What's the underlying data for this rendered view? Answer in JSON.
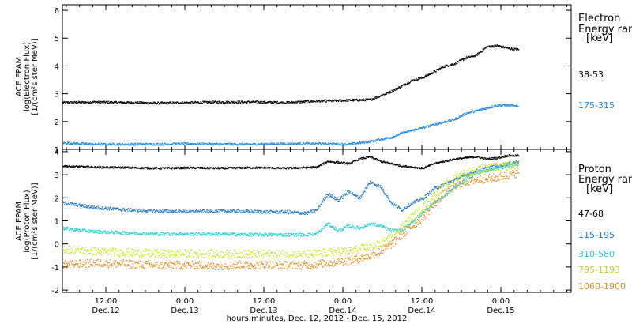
{
  "chart_data": [
    {
      "type": "scatter",
      "ylabel": [
        "ACE EPAM",
        "log(Electron Flux)",
        "[1/(cm²s ster MeV)]"
      ],
      "ylim": [
        1,
        6.2
      ],
      "yticks": [
        1,
        2,
        3,
        4,
        5,
        6
      ],
      "legend_title": [
        "Electron",
        "Energy ran"
      ],
      "legend_unit": "[keV]",
      "series": [
        {
          "name": "38-53",
          "color": "#000000",
          "x": [
            0,
            6,
            12,
            18,
            24,
            30,
            36,
            42,
            48,
            54,
            58,
            62,
            64,
            66,
            68,
            70,
            72,
            74,
            76,
            78,
            80,
            82,
            84,
            86
          ],
          "y": [
            2.7,
            2.72,
            2.7,
            2.68,
            2.7,
            2.72,
            2.72,
            2.7,
            2.75,
            2.78,
            2.8,
            3.1,
            3.3,
            3.5,
            3.6,
            3.8,
            4.0,
            4.1,
            4.3,
            4.4,
            4.7,
            4.75,
            4.65,
            4.6
          ]
        },
        {
          "name": "175-315",
          "color": "#1e88e5",
          "x": [
            0,
            6,
            12,
            18,
            24,
            30,
            36,
            42,
            48,
            54,
            58,
            62,
            64,
            66,
            68,
            70,
            72,
            74,
            76,
            78,
            80,
            82,
            84,
            86
          ],
          "y": [
            1.25,
            1.2,
            1.2,
            1.2,
            1.22,
            1.2,
            1.2,
            1.22,
            1.22,
            1.2,
            1.3,
            1.45,
            1.6,
            1.7,
            1.8,
            1.9,
            2.0,
            2.1,
            2.3,
            2.4,
            2.5,
            2.6,
            2.6,
            2.55
          ]
        }
      ]
    },
    {
      "type": "scatter",
      "ylabel": [
        "ACE EPAM",
        "log(Proton Flux)",
        "[1/(cm²s ster MeV)]"
      ],
      "ylim": [
        -2.1,
        4.1
      ],
      "yticks": [
        -2,
        -1,
        0,
        1,
        2,
        3,
        4
      ],
      "legend_title": [
        "Proton",
        "Energy ran"
      ],
      "legend_unit": "[keV]",
      "series": [
        {
          "name": "47-68",
          "color": "#000000",
          "x": [
            0,
            6,
            12,
            18,
            24,
            30,
            36,
            42,
            48,
            50,
            52,
            54,
            56,
            58,
            60,
            62,
            64,
            66,
            68,
            70,
            72,
            74,
            76,
            78,
            80,
            82,
            84,
            86
          ],
          "y": [
            3.4,
            3.35,
            3.33,
            3.3,
            3.32,
            3.3,
            3.33,
            3.3,
            3.35,
            3.6,
            3.55,
            3.5,
            3.7,
            3.8,
            3.6,
            3.5,
            3.4,
            3.35,
            3.3,
            3.5,
            3.6,
            3.7,
            3.75,
            3.8,
            3.7,
            3.75,
            3.85,
            3.85
          ]
        },
        {
          "name": "115-195",
          "color": "#1e78c8",
          "x": [
            0,
            6,
            12,
            18,
            24,
            30,
            36,
            42,
            46,
            48,
            50,
            52,
            54,
            56,
            58,
            60,
            62,
            64,
            66,
            68,
            70,
            72,
            74,
            76,
            78,
            80,
            82,
            84,
            86
          ],
          "y": [
            1.8,
            1.6,
            1.5,
            1.45,
            1.42,
            1.45,
            1.42,
            1.4,
            1.35,
            1.5,
            2.2,
            1.9,
            2.3,
            2.0,
            2.7,
            2.5,
            1.8,
            1.5,
            1.8,
            2.0,
            2.4,
            2.6,
            2.8,
            3.0,
            3.2,
            3.3,
            3.4,
            3.5,
            3.6
          ]
        },
        {
          "name": "310-580",
          "color": "#26d0d0",
          "x": [
            0,
            6,
            12,
            18,
            24,
            30,
            36,
            42,
            46,
            48,
            50,
            52,
            54,
            56,
            58,
            60,
            62,
            64,
            66,
            68,
            70,
            72,
            74,
            76,
            78,
            80,
            82,
            84,
            86
          ],
          "y": [
            0.7,
            0.55,
            0.5,
            0.45,
            0.45,
            0.45,
            0.42,
            0.42,
            0.42,
            0.45,
            0.9,
            0.6,
            0.8,
            0.7,
            0.9,
            0.8,
            0.6,
            0.6,
            1.0,
            1.4,
            1.8,
            2.1,
            2.5,
            2.8,
            3.1,
            3.2,
            3.3,
            3.4,
            3.45
          ]
        },
        {
          "name": "795-1193",
          "color": "#c8e61e",
          "x": [
            0,
            6,
            12,
            18,
            24,
            30,
            36,
            42,
            46,
            48,
            50,
            52,
            54,
            56,
            58,
            60,
            62,
            64,
            66,
            68,
            70,
            72,
            74,
            76,
            78,
            80,
            82,
            84,
            86
          ],
          "y": [
            -0.2,
            -0.3,
            -0.35,
            -0.4,
            -0.4,
            -0.42,
            -0.4,
            -0.42,
            -0.42,
            -0.4,
            -0.35,
            -0.3,
            -0.3,
            -0.2,
            -0.1,
            0.0,
            0.3,
            0.8,
            1.2,
            1.6,
            2.1,
            2.5,
            2.9,
            3.1,
            3.2,
            3.3,
            3.35,
            3.4,
            3.45
          ]
        },
        {
          "name": "1060-1900",
          "color": "#e88c1e",
          "x": [
            0,
            6,
            12,
            18,
            24,
            30,
            36,
            42,
            46,
            48,
            50,
            52,
            54,
            56,
            58,
            60,
            62,
            64,
            66,
            68,
            70,
            72,
            74,
            76,
            78,
            80,
            82,
            84,
            86
          ],
          "y": [
            -0.9,
            -0.8,
            -0.85,
            -0.9,
            -0.9,
            -0.92,
            -0.88,
            -0.9,
            -0.9,
            -0.85,
            -0.8,
            -0.75,
            -0.7,
            -0.6,
            -0.5,
            -0.3,
            0.0,
            0.4,
            0.8,
            1.2,
            1.7,
            2.2,
            2.5,
            2.7,
            2.8,
            2.85,
            2.9,
            3.0,
            3.1
          ]
        }
      ]
    }
  ],
  "x_axis": {
    "ticks": [
      {
        "label1": "12:00",
        "label2": "Dec.12"
      },
      {
        "label1": "0:00",
        "label2": "Dec.13"
      },
      {
        "label1": "12:00",
        "label2": "Dec.13"
      },
      {
        "label1": "0:00",
        "label2": "Dec.14"
      },
      {
        "label1": "12:00",
        "label2": "Dec.14"
      },
      {
        "label1": "0:00",
        "label2": "Dec.15"
      }
    ],
    "title": "hours:minutes, Dec. 12, 2012 - Dec. 15, 2012"
  }
}
